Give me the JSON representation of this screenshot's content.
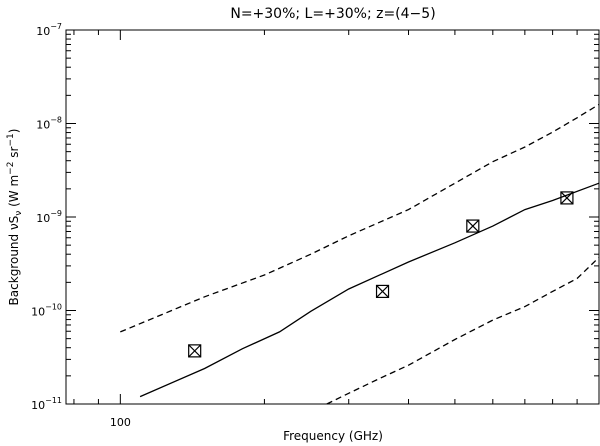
{
  "chart_data": {
    "type": "line",
    "title": "N=+30%; L=+30%; z=(4−5)",
    "xlabel": "Frequency (GHz)",
    "ylabel": "Background νS",
    "ylabel_sub": "ν",
    "ylabel_units": " (W m",
    "ylabel_exp1": "−2",
    "ylabel_mid": " sr",
    "ylabel_exp2": "−1",
    "ylabel_close": ")",
    "xscale": "log",
    "yscale": "log",
    "xlim": [
      77,
      1000
    ],
    "ylim": [
      1e-11,
      1e-07
    ],
    "grid": false,
    "x_tick_labels": [
      {
        "value": 100,
        "label": "100"
      }
    ],
    "y_tick_labels": [
      {
        "value": 1e-11,
        "base": "10",
        "exp": "−11"
      },
      {
        "value": 1e-10,
        "base": "10",
        "exp": "−10"
      },
      {
        "value": 1e-09,
        "base": "10",
        "exp": "−9"
      },
      {
        "value": 1e-08,
        "base": "10",
        "exp": "−8"
      },
      {
        "value": 1e-07,
        "base": "10",
        "exp": "−7"
      }
    ],
    "series": [
      {
        "style": "solid",
        "x": [
          110,
          150,
          180,
          215,
          250,
          300,
          400,
          500,
          600,
          700,
          800,
          1000
        ],
        "y": [
          1.2e-11,
          2.4e-11,
          3.9e-11,
          5.9e-11,
          9.8e-11,
          1.7e-10,
          3.3e-10,
          5.3e-10,
          8e-10,
          1.2e-09,
          1.5e-09,
          2.3e-09
        ]
      },
      {
        "style": "dashed",
        "x": [
          100,
          150,
          200,
          250,
          300,
          400,
          500,
          600,
          700,
          800,
          900,
          1000
        ],
        "y": [
          5.9e-11,
          1.4e-10,
          2.4e-10,
          4e-10,
          6.3e-10,
          1.2e-09,
          2.3e-09,
          3.9e-09,
          5.6e-09,
          8.1e-09,
          1.15e-08,
          1.6e-08
        ]
      },
      {
        "style": "dashed",
        "x": [
          270,
          300,
          350,
          400,
          500,
          600,
          700,
          800,
          900,
          1000
        ],
        "y": [
          1e-11,
          1.3e-11,
          1.9e-11,
          2.6e-11,
          4.9e-11,
          7.9e-11,
          1.1e-10,
          1.6e-10,
          2.2e-10,
          3.7e-10
        ]
      }
    ],
    "markers": {
      "style": "boxed-x",
      "points": [
        {
          "x": 143,
          "y": 3.7e-11
        },
        {
          "x": 353,
          "y": 1.6e-10
        },
        {
          "x": 545,
          "y": 8e-10
        },
        {
          "x": 857,
          "y": 1.6e-09
        }
      ]
    }
  }
}
